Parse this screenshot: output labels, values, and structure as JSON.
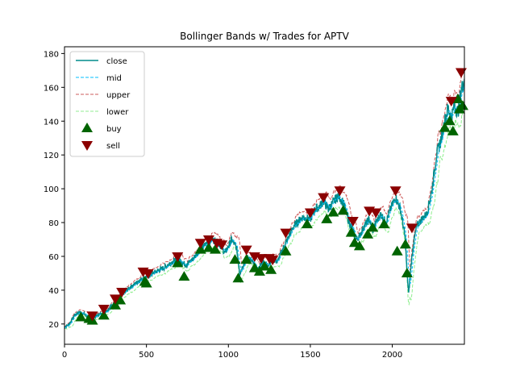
{
  "chart_data": {
    "type": "line",
    "title": "Bollinger Bands w/ Trades for APTV",
    "xlabel": "",
    "ylabel": "",
    "xlim": [
      0,
      2440
    ],
    "ylim": [
      8,
      184
    ],
    "x_ticks": [
      0,
      500,
      1000,
      1500,
      2000
    ],
    "y_ticks": [
      20,
      40,
      60,
      80,
      100,
      120,
      140,
      160,
      180
    ],
    "grid": false,
    "legend_position": "upper-left",
    "colors": {
      "close": "#008b8b",
      "mid": "#00bfff",
      "upper": "#cd5c5c",
      "lower": "#90ee90",
      "buy": "#006400",
      "sell": "#8b0000"
    },
    "legend": [
      {
        "key": "close",
        "label": "close",
        "style": "solid"
      },
      {
        "key": "mid",
        "label": "mid",
        "style": "dashed"
      },
      {
        "key": "upper",
        "label": "upper",
        "style": "dashed"
      },
      {
        "key": "lower",
        "label": "lower",
        "style": "dashed"
      },
      {
        "key": "buy",
        "label": "buy",
        "style": "triangle-up"
      },
      {
        "key": "sell",
        "label": "sell",
        "style": "triangle-down"
      }
    ],
    "close_keypoints": [
      [
        0,
        18
      ],
      [
        30,
        20
      ],
      [
        60,
        25
      ],
      [
        90,
        27
      ],
      [
        120,
        26
      ],
      [
        150,
        23
      ],
      [
        180,
        24
      ],
      [
        220,
        26
      ],
      [
        260,
        28
      ],
      [
        300,
        32
      ],
      [
        340,
        36
      ],
      [
        380,
        40
      ],
      [
        420,
        43
      ],
      [
        460,
        46
      ],
      [
        500,
        48
      ],
      [
        540,
        50
      ],
      [
        580,
        52
      ],
      [
        620,
        54
      ],
      [
        660,
        57
      ],
      [
        700,
        58
      ],
      [
        740,
        55
      ],
      [
        780,
        58
      ],
      [
        820,
        63
      ],
      [
        860,
        67
      ],
      [
        900,
        70
      ],
      [
        940,
        68
      ],
      [
        980,
        62
      ],
      [
        1020,
        70
      ],
      [
        1050,
        65
      ],
      [
        1070,
        50
      ],
      [
        1090,
        55
      ],
      [
        1120,
        60
      ],
      [
        1150,
        56
      ],
      [
        1180,
        52
      ],
      [
        1210,
        57
      ],
      [
        1240,
        55
      ],
      [
        1270,
        58
      ],
      [
        1300,
        57
      ],
      [
        1330,
        64
      ],
      [
        1360,
        70
      ],
      [
        1400,
        78
      ],
      [
        1450,
        83
      ],
      [
        1500,
        82
      ],
      [
        1530,
        88
      ],
      [
        1560,
        90
      ],
      [
        1580,
        93
      ],
      [
        1610,
        88
      ],
      [
        1640,
        92
      ],
      [
        1670,
        96
      ],
      [
        1700,
        92
      ],
      [
        1730,
        82
      ],
      [
        1760,
        75
      ],
      [
        1780,
        70
      ],
      [
        1800,
        72
      ],
      [
        1830,
        78
      ],
      [
        1860,
        82
      ],
      [
        1880,
        75
      ],
      [
        1900,
        80
      ],
      [
        1930,
        85
      ],
      [
        1960,
        80
      ],
      [
        1990,
        88
      ],
      [
        2020,
        95
      ],
      [
        2050,
        88
      ],
      [
        2080,
        70
      ],
      [
        2090,
        50
      ],
      [
        2100,
        38
      ],
      [
        2115,
        55
      ],
      [
        2130,
        68
      ],
      [
        2150,
        78
      ],
      [
        2180,
        82
      ],
      [
        2210,
        85
      ],
      [
        2240,
        98
      ],
      [
        2270,
        120
      ],
      [
        2300,
        130
      ],
      [
        2320,
        140
      ],
      [
        2340,
        148
      ],
      [
        2360,
        142
      ],
      [
        2380,
        150
      ],
      [
        2400,
        145
      ],
      [
        2420,
        158
      ],
      [
        2440,
        165
      ]
    ],
    "buy_points": [
      [
        100,
        24
      ],
      [
        150,
        23
      ],
      [
        170,
        22
      ],
      [
        240,
        25
      ],
      [
        310,
        31
      ],
      [
        340,
        34
      ],
      [
        490,
        45
      ],
      [
        500,
        44
      ],
      [
        690,
        56
      ],
      [
        730,
        48
      ],
      [
        830,
        64
      ],
      [
        880,
        65
      ],
      [
        920,
        64
      ],
      [
        1040,
        58
      ],
      [
        1060,
        47
      ],
      [
        1110,
        58
      ],
      [
        1160,
        53
      ],
      [
        1190,
        51
      ],
      [
        1220,
        54
      ],
      [
        1260,
        52
      ],
      [
        1350,
        63
      ],
      [
        1480,
        79
      ],
      [
        1600,
        82
      ],
      [
        1640,
        86
      ],
      [
        1700,
        87
      ],
      [
        1750,
        74
      ],
      [
        1770,
        68
      ],
      [
        1800,
        66
      ],
      [
        1850,
        73
      ],
      [
        1880,
        77
      ],
      [
        1950,
        79
      ],
      [
        2030,
        63
      ],
      [
        2080,
        67
      ],
      [
        2090,
        50
      ],
      [
        2320,
        136
      ],
      [
        2350,
        140
      ],
      [
        2370,
        134
      ],
      [
        2400,
        153
      ],
      [
        2410,
        147
      ],
      [
        2430,
        149
      ]
    ],
    "sell_points": [
      [
        170,
        25
      ],
      [
        240,
        29
      ],
      [
        310,
        35
      ],
      [
        350,
        39
      ],
      [
        480,
        51
      ],
      [
        510,
        50
      ],
      [
        690,
        60
      ],
      [
        830,
        68
      ],
      [
        880,
        70
      ],
      [
        930,
        68
      ],
      [
        960,
        67
      ],
      [
        1110,
        64
      ],
      [
        1160,
        60
      ],
      [
        1200,
        59
      ],
      [
        1250,
        59
      ],
      [
        1270,
        58
      ],
      [
        1350,
        74
      ],
      [
        1500,
        86
      ],
      [
        1580,
        95
      ],
      [
        1680,
        99
      ],
      [
        1760,
        81
      ],
      [
        1860,
        87
      ],
      [
        1900,
        86
      ],
      [
        2020,
        99
      ],
      [
        2120,
        77
      ],
      [
        2360,
        152
      ],
      [
        2420,
        169
      ]
    ]
  }
}
